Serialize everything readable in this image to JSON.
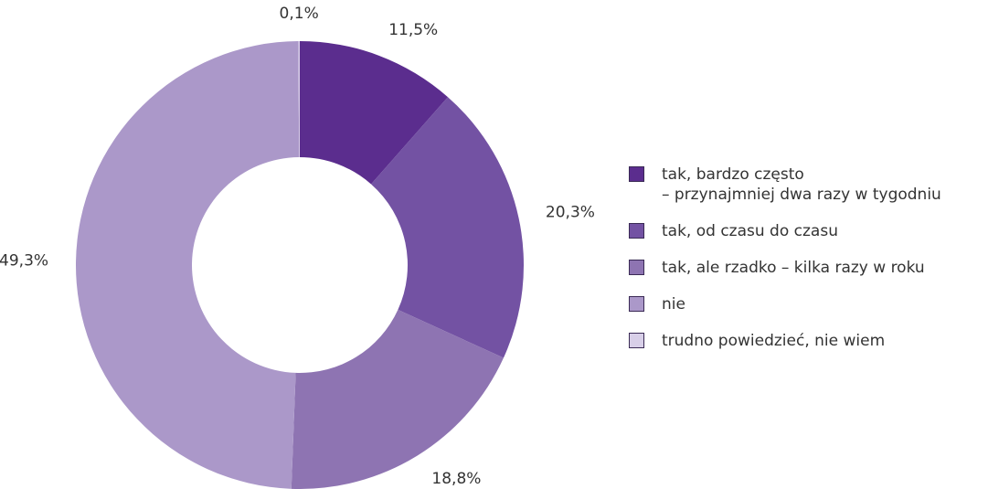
{
  "chart_data": {
    "type": "donut",
    "categories": [
      "tak, bardzo często\n– przynajmniej dwa razy w tygodniu",
      "tak, od czasu do czasu",
      "tak, ale rzadko – kilka razy w roku",
      "nie",
      "trudno powiedzieć, nie wiem"
    ],
    "values": [
      11.5,
      20.3,
      18.8,
      49.3,
      0.1
    ],
    "value_labels": [
      "11,5%",
      "20,3%",
      "18,8%",
      "49,3%",
      "0,1%"
    ],
    "colors": [
      "#5b2d8e",
      "#7352a3",
      "#8e74b2",
      "#ab98c9",
      "#d8cfe8"
    ],
    "legend": "right"
  }
}
